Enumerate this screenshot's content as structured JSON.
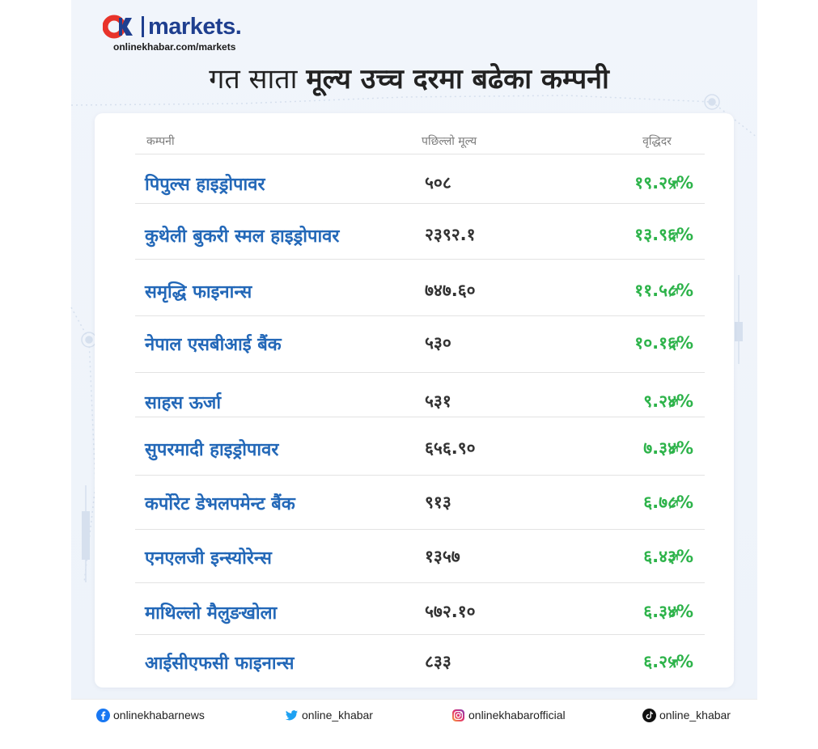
{
  "brand": {
    "name": "markets.",
    "url": "onlinekhabar.com/markets"
  },
  "title": {
    "part1": "गत साता",
    "part2": "मूल्य उच्च दरमा बढेका कम्पनी"
  },
  "table": {
    "headers": {
      "company": "कम्पनी",
      "price": "पछिल्लो मूल्य",
      "growth": "वृद्धिदर"
    },
    "rows": [
      {
        "company": "पिपुल्स हाइड्रोपावर",
        "price": "५०८",
        "growth": "१९.२५%"
      },
      {
        "company": "कुथेली बुकरी स्मल हाइड्रोपावर",
        "price": "२३९२.१",
        "growth": "१३.९६%"
      },
      {
        "company": "समृद्धि फाइनान्स",
        "price": "७४७.६०",
        "growth": "११.५८%"
      },
      {
        "company": "नेपाल एसबीआई बैंक",
        "price": "५३०",
        "growth": "१०.१६%"
      },
      {
        "company": "साहस ऊर्जा",
        "price": "५३१",
        "growth": "९.२४%"
      },
      {
        "company": "सुपरमादी हाइड्रोपावर",
        "price": "६५६.९०",
        "growth": "७.३४%"
      },
      {
        "company": "कर्पोरेट डेभलपमेन्ट बैंक",
        "price": "९१३",
        "growth": "६.७८%"
      },
      {
        "company": "एनएलजी इन्स्योरेन्स",
        "price": "१३५७",
        "growth": "६.४३%"
      },
      {
        "company": "माथिल्लो मैलुङखोला",
        "price": "५७२.१०",
        "growth": "६.३४%"
      },
      {
        "company": "आईसीएफसी फाइनान्स",
        "price": "८३३",
        "growth": "६.२५%"
      }
    ]
  },
  "social": {
    "facebook": "onlinekhabarnews",
    "twitter": "online_khabar",
    "instagram": "onlinekhabarofficial",
    "tiktok": "online_khabar"
  },
  "colors": {
    "brand": "#1f3f8f",
    "brand_accent": "#e8332a",
    "company_text": "#2368b8",
    "growth_text": "#2db34a"
  },
  "icons": {
    "growth": "arrow-up-right-icon",
    "facebook": "facebook-icon",
    "twitter": "twitter-icon",
    "instagram": "instagram-icon",
    "tiktok": "tiktok-icon"
  }
}
